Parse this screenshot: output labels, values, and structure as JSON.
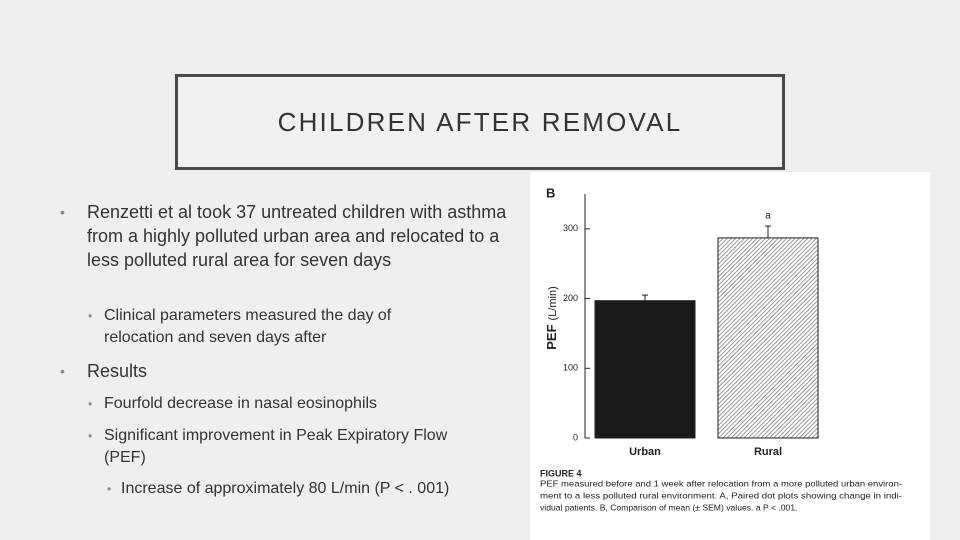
{
  "slide": {
    "title": "CHILDREN AFTER REMOVAL",
    "bullets": [
      {
        "level": 1,
        "text": "Renzetti et al took 37 untreated children with asthma from a highly polluted urban area and relocated to a less polluted rural area for seven days"
      },
      {
        "level": 2,
        "text": "Clinical parameters measured the day of relocation and seven days after"
      },
      {
        "level": 1,
        "text": "Results"
      },
      {
        "level": 2,
        "text": "Fourfold decrease in nasal eosinophils"
      },
      {
        "level": 2,
        "text": "Significant improvement in Peak Expiratory Flow (PEF)"
      },
      {
        "level": 3,
        "text": "Increase of approximately 80 L/min (P < . 001)"
      }
    ],
    "bullet_symbol": "•"
  },
  "chart_data": {
    "type": "bar",
    "panel_label": "B",
    "y_label": "PEF",
    "y_label_unit": "(L/min)",
    "categories": [
      "Urban",
      "Rural"
    ],
    "values": [
      197,
      287
    ],
    "errors": [
      8,
      17
    ],
    "colors": [
      "#1a1a1a",
      "#6e6e6e"
    ],
    "hatched": [
      false,
      true
    ],
    "annotation": "a",
    "ylim": [
      0,
      350
    ],
    "yticks": [
      0,
      100,
      200,
      300
    ],
    "caption_title": "FIGURE 4",
    "caption_lines": [
      "PEF measured before and 1 week after relocation from a more polluted urban environ-",
      "ment to a less polluted rural environment. A, Paired dot plots showing change in indi-",
      "vidual patients. B, Comparison of mean (± SEM) values. a P < .001."
    ]
  }
}
